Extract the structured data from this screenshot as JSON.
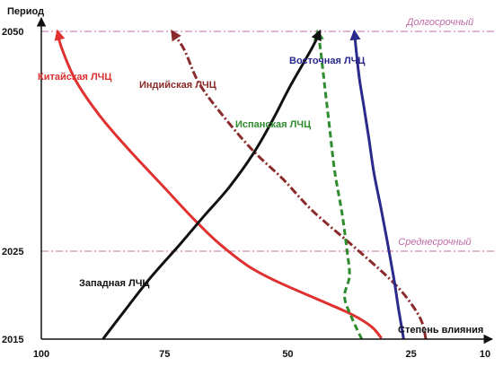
{
  "chart_data": {
    "type": "line",
    "title": "",
    "xlabel": "Степень влияния",
    "ylabel": "Период",
    "x_reversed": true,
    "xlim": [
      100,
      10
    ],
    "ylim": [
      2015,
      2050
    ],
    "x_ticks": [
      100,
      75,
      50,
      25,
      10
    ],
    "y_ticks": [
      2015,
      2025,
      2050
    ],
    "grid": false,
    "reference_lines": [
      {
        "label": "Долгосрочный",
        "y": 2050,
        "color": "#c06aa6"
      },
      {
        "label": "Среднесрочный",
        "y": 2025,
        "color": "#c06aa6"
      }
    ],
    "series": [
      {
        "name": "Китайская ЛЧЦ",
        "color": "#e03030",
        "style": "solid",
        "arrow": true,
        "points": [
          [
            31,
            2015.1
          ],
          [
            33,
            2016.4
          ],
          [
            37,
            2017.8
          ],
          [
            43,
            2019.3
          ],
          [
            52,
            2021.5
          ],
          [
            58,
            2023.3
          ],
          [
            64,
            2025.9
          ],
          [
            69,
            2028.6
          ],
          [
            75,
            2032.2
          ],
          [
            82,
            2036.4
          ],
          [
            88,
            2040.3
          ],
          [
            93,
            2044.4
          ],
          [
            96,
            2048.3
          ],
          [
            96.7,
            2050
          ]
        ]
      },
      {
        "name": "Индийская ЛЧЦ",
        "color": "#8b2a2a",
        "style": "dashdot",
        "arrow": true,
        "points": [
          [
            22,
            2015
          ],
          [
            23,
            2017.2
          ],
          [
            26,
            2019.8
          ],
          [
            30,
            2022.2
          ],
          [
            37,
            2025.7
          ],
          [
            45,
            2029.6
          ],
          [
            51,
            2033.2
          ],
          [
            57,
            2036.4
          ],
          [
            63,
            2040.3
          ],
          [
            68,
            2044.1
          ],
          [
            71,
            2047.9
          ],
          [
            73.5,
            2050
          ]
        ]
      },
      {
        "name": "Испанская ЛЧЦ",
        "color": "#2e8b2e",
        "style": "dashed",
        "arrow": true,
        "points": [
          [
            35,
            2015
          ],
          [
            37,
            2017.4
          ],
          [
            38.5,
            2019.8
          ],
          [
            37.5,
            2022.2
          ],
          [
            38,
            2025.1
          ],
          [
            39,
            2029.3
          ],
          [
            40.5,
            2034.1
          ],
          [
            41.5,
            2038.9
          ],
          [
            42.5,
            2043.7
          ],
          [
            43.5,
            2048.5
          ],
          [
            44,
            2050
          ]
        ]
      },
      {
        "name": "Восточная ЛЧЦ",
        "color": "#2a2a8c",
        "style": "solid",
        "arrow": true,
        "points": [
          [
            26.5,
            2015
          ],
          [
            27.5,
            2018.3
          ],
          [
            28.5,
            2021.9
          ],
          [
            29.7,
            2025.7
          ],
          [
            31,
            2029.6
          ],
          [
            32.5,
            2033.8
          ],
          [
            33.5,
            2037.6
          ],
          [
            34.5,
            2041.2
          ],
          [
            35.5,
            2044.7
          ],
          [
            36.2,
            2048.2
          ],
          [
            36.5,
            2050
          ]
        ]
      },
      {
        "name": "Западная ЛЧЦ",
        "color": "#111111",
        "style": "solid",
        "arrow": true,
        "points": [
          [
            87.5,
            2015
          ],
          [
            83,
            2018.3
          ],
          [
            78,
            2021.9
          ],
          [
            72,
            2025.7
          ],
          [
            67,
            2029
          ],
          [
            62,
            2032.2
          ],
          [
            57,
            2036.1
          ],
          [
            53,
            2040
          ],
          [
            49.5,
            2043.8
          ],
          [
            45,
            2048.2
          ],
          [
            43.5,
            2050
          ]
        ]
      }
    ]
  }
}
